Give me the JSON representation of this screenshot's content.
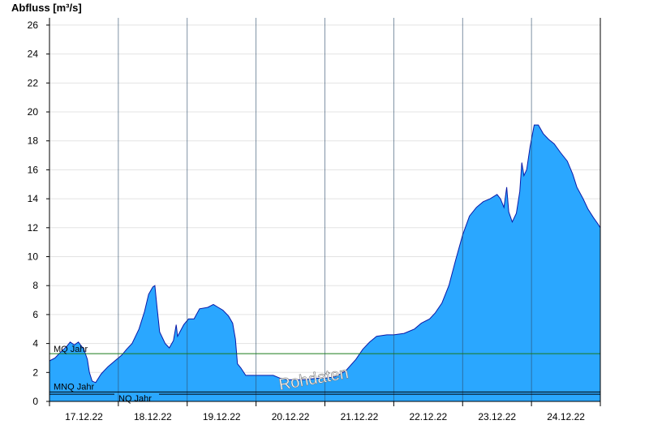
{
  "chart_data": {
    "type": "area",
    "ylabel": "Abfluss [m³/s]",
    "ylim": [
      0,
      26.5
    ],
    "yticks": [
      0,
      2,
      4,
      6,
      8,
      10,
      12,
      14,
      16,
      18,
      20,
      22,
      24,
      26
    ],
    "xlim": [
      0,
      8
    ],
    "xticks": [
      {
        "label": "17.12.22",
        "x": 0.5
      },
      {
        "label": "18.12.22",
        "x": 1.5
      },
      {
        "label": "19.12.22",
        "x": 2.5
      },
      {
        "label": "20.12.22",
        "x": 3.5
      },
      {
        "label": "21.12.22",
        "x": 4.5
      },
      {
        "label": "22.12.22",
        "x": 5.5
      },
      {
        "label": "23.12.22",
        "x": 6.5
      },
      {
        "label": "24.12.22",
        "x": 7.5
      }
    ],
    "day_boundaries": [
      1,
      2,
      3,
      4,
      5,
      6,
      7
    ],
    "grid": true,
    "watermark": "Rohdaten",
    "colors": {
      "fill": "#2aa7ff",
      "outline": "#0a1aa8",
      "mq_line": "#1a7a1a",
      "ref_line": "#000000",
      "grid": "#e3e3e3",
      "day_line": "#2a4a6a"
    },
    "reference_lines": [
      {
        "label": "MQ Jahr",
        "value": 3.3,
        "color": "#1a7a1a"
      },
      {
        "label": "MNQ Jahr",
        "value": 0.65,
        "color": "#000000"
      },
      {
        "label": "NQ Jahr",
        "value": 0.5,
        "color": "#000000"
      }
    ],
    "series": [
      {
        "values": [
          {
            "x": 0.0,
            "y": 2.8
          },
          {
            "x": 0.08,
            "y": 3.0
          },
          {
            "x": 0.16,
            "y": 3.4
          },
          {
            "x": 0.25,
            "y": 3.8
          },
          {
            "x": 0.3,
            "y": 4.1
          },
          {
            "x": 0.36,
            "y": 3.9
          },
          {
            "x": 0.42,
            "y": 4.1
          },
          {
            "x": 0.5,
            "y": 3.6
          },
          {
            "x": 0.55,
            "y": 2.9
          },
          {
            "x": 0.58,
            "y": 2.0
          },
          {
            "x": 0.62,
            "y": 1.4
          },
          {
            "x": 0.67,
            "y": 1.3
          },
          {
            "x": 0.75,
            "y": 1.9
          },
          {
            "x": 0.85,
            "y": 2.4
          },
          {
            "x": 0.95,
            "y": 2.8
          },
          {
            "x": 1.05,
            "y": 3.2
          },
          {
            "x": 1.12,
            "y": 3.6
          },
          {
            "x": 1.2,
            "y": 4.0
          },
          {
            "x": 1.3,
            "y": 5.0
          },
          {
            "x": 1.38,
            "y": 6.2
          },
          {
            "x": 1.44,
            "y": 7.4
          },
          {
            "x": 1.5,
            "y": 7.9
          },
          {
            "x": 1.53,
            "y": 8.0
          },
          {
            "x": 1.56,
            "y": 6.6
          },
          {
            "x": 1.6,
            "y": 4.8
          },
          {
            "x": 1.68,
            "y": 4.0
          },
          {
            "x": 1.74,
            "y": 3.7
          },
          {
            "x": 1.8,
            "y": 4.2
          },
          {
            "x": 1.84,
            "y": 5.3
          },
          {
            "x": 1.86,
            "y": 4.5
          },
          {
            "x": 1.95,
            "y": 5.3
          },
          {
            "x": 2.02,
            "y": 5.7
          },
          {
            "x": 2.1,
            "y": 5.7
          },
          {
            "x": 2.18,
            "y": 6.4
          },
          {
            "x": 2.3,
            "y": 6.5
          },
          {
            "x": 2.38,
            "y": 6.7
          },
          {
            "x": 2.45,
            "y": 6.5
          },
          {
            "x": 2.52,
            "y": 6.3
          },
          {
            "x": 2.6,
            "y": 5.9
          },
          {
            "x": 2.66,
            "y": 5.4
          },
          {
            "x": 2.7,
            "y": 4.3
          },
          {
            "x": 2.73,
            "y": 2.6
          },
          {
            "x": 2.78,
            "y": 2.3
          },
          {
            "x": 2.85,
            "y": 1.8
          },
          {
            "x": 3.0,
            "y": 1.8
          },
          {
            "x": 3.25,
            "y": 1.8
          },
          {
            "x": 3.35,
            "y": 1.6
          },
          {
            "x": 3.45,
            "y": 1.5
          },
          {
            "x": 3.7,
            "y": 1.5
          },
          {
            "x": 3.9,
            "y": 1.6
          },
          {
            "x": 4.0,
            "y": 1.6
          },
          {
            "x": 4.15,
            "y": 1.7
          },
          {
            "x": 4.3,
            "y": 2.1
          },
          {
            "x": 4.45,
            "y": 2.9
          },
          {
            "x": 4.55,
            "y": 3.6
          },
          {
            "x": 4.65,
            "y": 4.1
          },
          {
            "x": 4.75,
            "y": 4.5
          },
          {
            "x": 4.9,
            "y": 4.6
          },
          {
            "x": 5.0,
            "y": 4.6
          },
          {
            "x": 5.15,
            "y": 4.7
          },
          {
            "x": 5.3,
            "y": 5.0
          },
          {
            "x": 5.4,
            "y": 5.4
          },
          {
            "x": 5.52,
            "y": 5.7
          },
          {
            "x": 5.6,
            "y": 6.1
          },
          {
            "x": 5.7,
            "y": 6.8
          },
          {
            "x": 5.8,
            "y": 8.0
          },
          {
            "x": 5.9,
            "y": 9.8
          },
          {
            "x": 6.0,
            "y": 11.5
          },
          {
            "x": 6.1,
            "y": 12.8
          },
          {
            "x": 6.2,
            "y": 13.4
          },
          {
            "x": 6.3,
            "y": 13.8
          },
          {
            "x": 6.4,
            "y": 14.0
          },
          {
            "x": 6.5,
            "y": 14.3
          },
          {
            "x": 6.55,
            "y": 14.0
          },
          {
            "x": 6.6,
            "y": 13.4
          },
          {
            "x": 6.64,
            "y": 14.8
          },
          {
            "x": 6.67,
            "y": 13.1
          },
          {
            "x": 6.72,
            "y": 12.4
          },
          {
            "x": 6.78,
            "y": 13.0
          },
          {
            "x": 6.83,
            "y": 14.5
          },
          {
            "x": 6.86,
            "y": 16.5
          },
          {
            "x": 6.89,
            "y": 15.6
          },
          {
            "x": 6.93,
            "y": 16.0
          },
          {
            "x": 6.98,
            "y": 17.6
          },
          {
            "x": 7.04,
            "y": 19.1
          },
          {
            "x": 7.1,
            "y": 19.1
          },
          {
            "x": 7.17,
            "y": 18.5
          },
          {
            "x": 7.25,
            "y": 18.1
          },
          {
            "x": 7.33,
            "y": 17.8
          },
          {
            "x": 7.42,
            "y": 17.2
          },
          {
            "x": 7.52,
            "y": 16.6
          },
          {
            "x": 7.6,
            "y": 15.7
          },
          {
            "x": 7.66,
            "y": 14.8
          },
          {
            "x": 7.75,
            "y": 14.0
          },
          {
            "x": 7.82,
            "y": 13.3
          },
          {
            "x": 7.9,
            "y": 12.7
          },
          {
            "x": 7.96,
            "y": 12.3
          },
          {
            "x": 8.0,
            "y": 12.0
          }
        ]
      }
    ]
  }
}
